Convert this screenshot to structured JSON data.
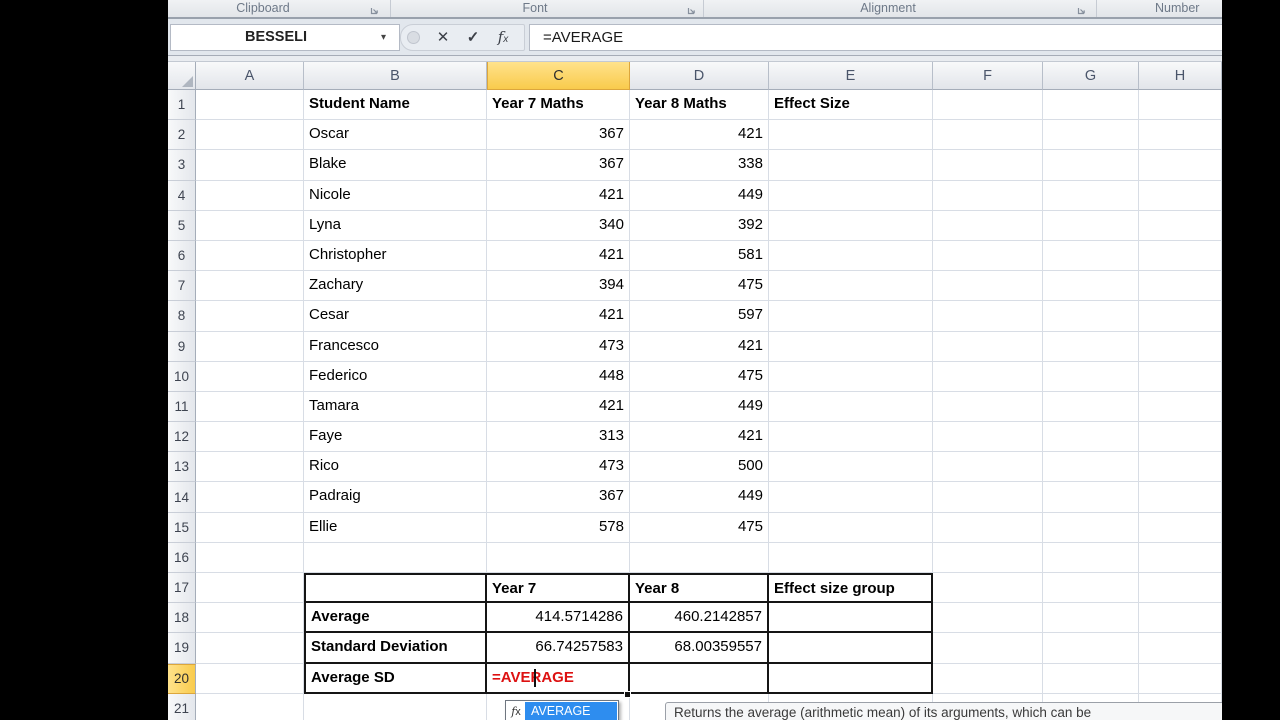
{
  "ribbon": {
    "groups": [
      "Clipboard",
      "Font",
      "Alignment",
      "Number"
    ]
  },
  "formula_bar": {
    "name_box": "BESSELI",
    "formula": "=AVERAGE"
  },
  "grid": {
    "columns": [
      "A",
      "B",
      "C",
      "D",
      "E",
      "F",
      "G",
      "H"
    ],
    "selected_column": "C",
    "selected_row": "20",
    "active_cell": "C20",
    "rows": [
      {
        "num": "1",
        "cells": [
          "",
          "Student Name",
          "Year 7 Maths",
          "Year 8 Maths",
          "Effect Size",
          "",
          "",
          ""
        ]
      },
      {
        "num": "2",
        "cells": [
          "",
          "Oscar",
          "367",
          "421",
          "",
          "",
          "",
          ""
        ]
      },
      {
        "num": "3",
        "cells": [
          "",
          "Blake",
          "367",
          "338",
          "",
          "",
          "",
          ""
        ]
      },
      {
        "num": "4",
        "cells": [
          "",
          "Nicole",
          "421",
          "449",
          "",
          "",
          "",
          ""
        ]
      },
      {
        "num": "5",
        "cells": [
          "",
          "Lyna",
          "340",
          "392",
          "",
          "",
          "",
          ""
        ]
      },
      {
        "num": "6",
        "cells": [
          "",
          "Christopher",
          "421",
          "581",
          "",
          "",
          "",
          ""
        ]
      },
      {
        "num": "7",
        "cells": [
          "",
          "Zachary",
          "394",
          "475",
          "",
          "",
          "",
          ""
        ]
      },
      {
        "num": "8",
        "cells": [
          "",
          "Cesar",
          "421",
          "597",
          "",
          "",
          "",
          ""
        ]
      },
      {
        "num": "9",
        "cells": [
          "",
          "Francesco",
          "473",
          "421",
          "",
          "",
          "",
          ""
        ]
      },
      {
        "num": "10",
        "cells": [
          "",
          "Federico",
          "448",
          "475",
          "",
          "",
          "",
          ""
        ]
      },
      {
        "num": "11",
        "cells": [
          "",
          "Tamara",
          "421",
          "449",
          "",
          "",
          "",
          ""
        ]
      },
      {
        "num": "12",
        "cells": [
          "",
          "Faye",
          "313",
          "421",
          "",
          "",
          "",
          ""
        ]
      },
      {
        "num": "13",
        "cells": [
          "",
          "Rico",
          "473",
          "500",
          "",
          "",
          "",
          ""
        ]
      },
      {
        "num": "14",
        "cells": [
          "",
          "Padraig",
          "367",
          "449",
          "",
          "",
          "",
          ""
        ]
      },
      {
        "num": "15",
        "cells": [
          "",
          "Ellie",
          "578",
          "475",
          "",
          "",
          "",
          ""
        ]
      },
      {
        "num": "16",
        "cells": [
          "",
          "",
          "",
          "",
          "",
          "",
          "",
          ""
        ]
      },
      {
        "num": "17",
        "cells": [
          "",
          "",
          "Year 7",
          "Year 8",
          "Effect size group",
          "",
          "",
          ""
        ]
      },
      {
        "num": "18",
        "cells": [
          "",
          "Average",
          "414.5714286",
          "460.2142857",
          "",
          "",
          "",
          ""
        ]
      },
      {
        "num": "19",
        "cells": [
          "",
          "Standard Deviation",
          "66.74257583",
          "68.00359557",
          "",
          "",
          "",
          ""
        ]
      },
      {
        "num": "20",
        "cells": [
          "",
          "Average SD",
          "=AVERAGE",
          "",
          "",
          "",
          "",
          ""
        ]
      },
      {
        "num": "21",
        "cells": [
          "",
          "",
          "",
          "",
          "",
          "",
          "",
          ""
        ]
      }
    ]
  },
  "popup": {
    "function_name": "AVERAGE",
    "tooltip": "Returns the average (arithmetic mean) of its arguments, which can be"
  },
  "colors": {
    "selection_amber": "#F9CB4C",
    "autocomplete_blue": "#2E8DEF",
    "formula_red": "#DD1111"
  }
}
